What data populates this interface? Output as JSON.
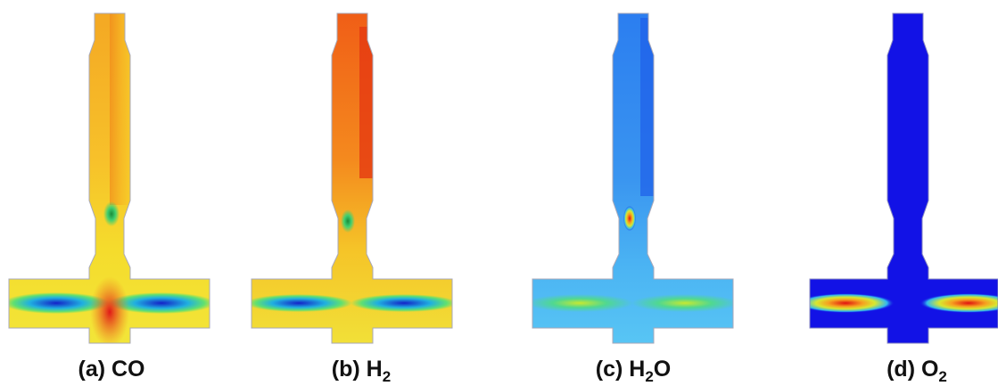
{
  "panels": [
    {
      "caption": [
        {
          "text": "(a) CO"
        }
      ]
    },
    {
      "caption": [
        {
          "text": "(b) H"
        },
        {
          "sub": "2"
        }
      ]
    },
    {
      "caption": [
        {
          "text": "(c) H"
        },
        {
          "sub": "2"
        },
        {
          "text": "O"
        }
      ]
    },
    {
      "caption": [
        {
          "text": "(d) O"
        },
        {
          "sub": "2"
        }
      ]
    }
  ]
}
